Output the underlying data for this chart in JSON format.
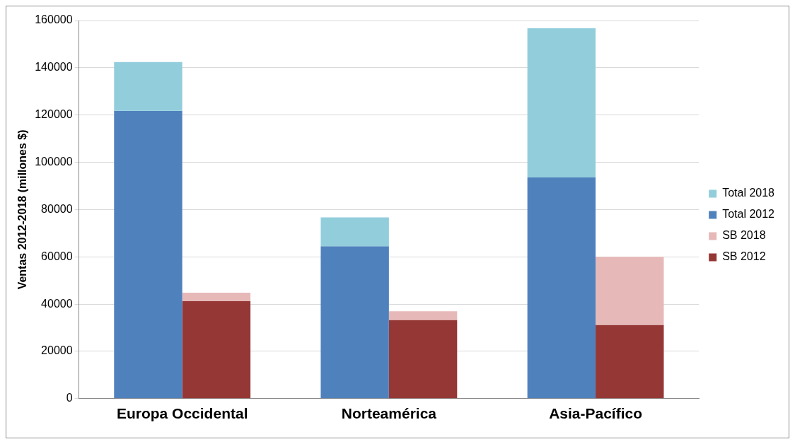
{
  "chart_data": {
    "type": "bar",
    "ylabel": "Ventas 2012-2018 (millones $)",
    "categories": [
      "Europa Occidental",
      "Norteamérica",
      "Asia-Pacífico"
    ],
    "series": [
      {
        "name": "Total 2018",
        "color": "#92cddc",
        "base": [
          121800,
          64500,
          93600
        ],
        "values": [
          20600,
          12200,
          63100
        ]
      },
      {
        "name": "Total 2012",
        "color": "#4f81bd",
        "values": [
          121800,
          64500,
          93600
        ]
      },
      {
        "name": "SB 2018",
        "color": "#e6b9b8",
        "base": [
          41200,
          33300,
          31200
        ],
        "values": [
          3600,
          3700,
          28800
        ]
      },
      {
        "name": "SB 2012",
        "color": "#953735",
        "values": [
          41200,
          33300,
          31200
        ]
      }
    ],
    "ylim": [
      0,
      160000
    ],
    "yticks": [
      0,
      20000,
      40000,
      60000,
      80000,
      100000,
      120000,
      140000,
      160000
    ],
    "grid": "y",
    "legend": "right"
  }
}
